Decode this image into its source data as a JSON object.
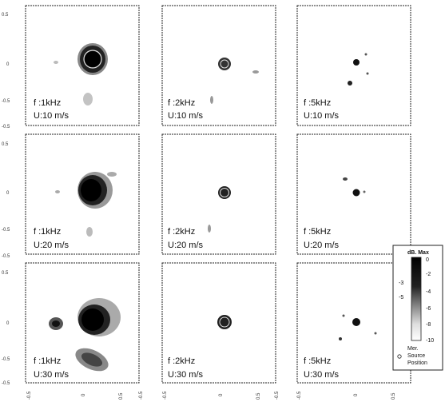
{
  "y_ticks": [
    "0.5",
    "0",
    "-0.5"
  ],
  "y_bottom_tick": "-0.5",
  "x_ticks": [
    "-0.5",
    "0",
    "0.5"
  ],
  "legend": {
    "title": "dB. Max",
    "right_ticks": [
      "0",
      "-2",
      "-4",
      "-6",
      "-8",
      "-10"
    ],
    "left_ticks": [
      "-3",
      "-5"
    ],
    "note": [
      "Mer.",
      "Source",
      "Position"
    ]
  },
  "panels": [
    {
      "f": "f :1kHz",
      "u": "U:10 m/s"
    },
    {
      "f": "f :2kHz",
      "u": "U:10 m/s"
    },
    {
      "f": "f :5kHz",
      "u": "U:10 m/s"
    },
    {
      "f": "f :1kHz",
      "u": "U:20 m/s"
    },
    {
      "f": "f :2kHz",
      "u": "U:20 m/s"
    },
    {
      "f": "f :5kHz",
      "u": "U:20 m/s"
    },
    {
      "f": "f :1kHz",
      "u": "U:30 m/s"
    },
    {
      "f": "f :2kHz",
      "u": "U:30 m/s"
    },
    {
      "f": "f :5kHz",
      "u": "U:30 m/s"
    }
  ]
}
